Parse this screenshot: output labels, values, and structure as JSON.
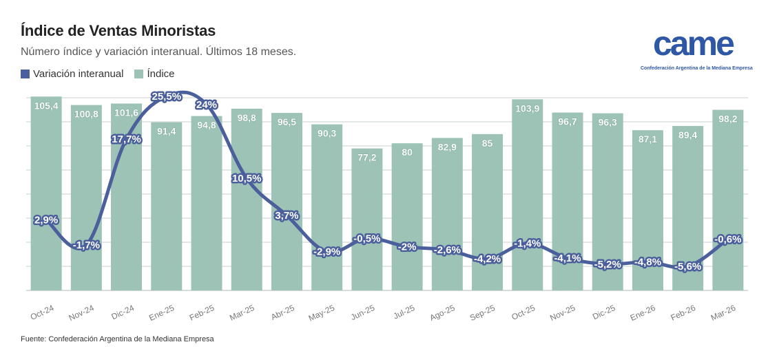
{
  "title": "Índice de Ventas Minoristas",
  "subtitle": "Número índice y variación interanual. Últimos 18 meses.",
  "source": "Fuente: Confederación Argentina de la Mediana Empresa",
  "logo": {
    "brand": "came",
    "tagline": "Confederación Argentina de la Mediana Empresa"
  },
  "colors": {
    "bar": "#9cc3b5",
    "line": "#4a5f9c",
    "grid": "#c8cfd2",
    "bg": "#ffffff"
  },
  "chart_data": {
    "type": "bar",
    "title": "Índice de Ventas Minoristas",
    "subtitle": "Número índice y variación interanual. Últimos 18 meses.",
    "categories": [
      "Oct-24",
      "Nov-24",
      "Dic-24",
      "Ene-25",
      "Feb-25",
      "Mar-25",
      "Abr-25",
      "May-25",
      "Jun-25",
      "Jul-25",
      "Ago-25",
      "Sep-25",
      "Oct-25",
      "Nov-25",
      "Dic-25",
      "Ene-26",
      "Feb-26",
      "Mar-26"
    ],
    "series": [
      {
        "name": "Índice",
        "type": "bar",
        "values": [
          105.4,
          100.8,
          101.6,
          91.4,
          94.8,
          98.8,
          96.5,
          90.3,
          77.2,
          80,
          82.9,
          85,
          103.9,
          96.7,
          96.3,
          87.1,
          89.4,
          98.2
        ],
        "labels": [
          "105,4",
          "100,8",
          "101,6",
          "91,4",
          "94,8",
          "98,8",
          "96,5",
          "90,3",
          "77,2",
          "80",
          "82,9",
          "85",
          "103,9",
          "96,7",
          "96,3",
          "87,1",
          "89,4",
          "98,2"
        ]
      },
      {
        "name": "Variación interanual",
        "type": "line",
        "values": [
          2.9,
          -1.7,
          17.7,
          25.5,
          24,
          10.5,
          3.7,
          -2.9,
          -0.5,
          -2,
          -2.6,
          -4.2,
          -1.4,
          -4.1,
          -5.2,
          -4.8,
          -5.6,
          -0.6
        ],
        "labels": [
          "2,9%",
          "-1,7%",
          "17,7%",
          "25,5%",
          "24%",
          "10,5%",
          "3,7%",
          "-2,9%",
          "-0,5%",
          "-2%",
          "-2,6%",
          "-4,2%",
          "-1,4%",
          "-4,1%",
          "-5,2%",
          "-4,8%",
          "-5,6%",
          "-0,6%"
        ]
      }
    ],
    "legend": "top-left",
    "grid": true,
    "bar_ylim": [
      0,
      110
    ],
    "line_ylim": [
      -10,
      27
    ]
  }
}
